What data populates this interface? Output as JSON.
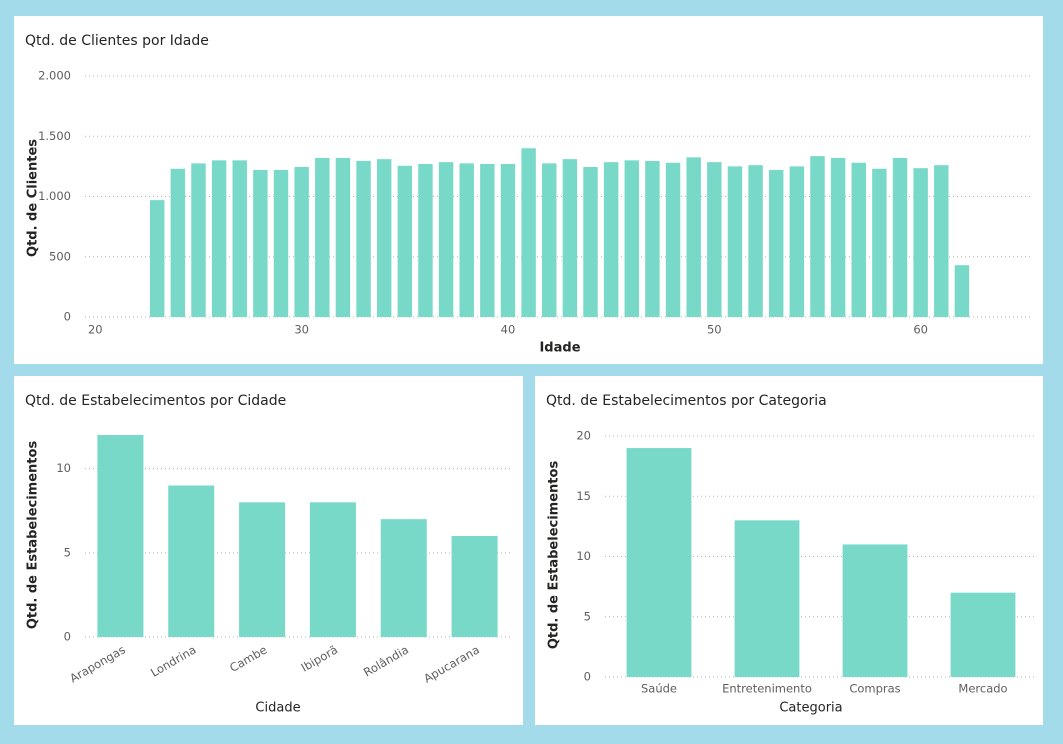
{
  "chart_data": [
    {
      "type": "bar",
      "title": "Qtd. de Clientes por Idade",
      "x_label": "Idade",
      "y_label": "Qtd. de Clientes",
      "x": [
        23,
        24,
        25,
        26,
        27,
        28,
        29,
        30,
        31,
        32,
        33,
        34,
        35,
        36,
        37,
        38,
        39,
        40,
        41,
        42,
        43,
        44,
        45,
        46,
        47,
        48,
        49,
        50,
        51,
        52,
        53,
        54,
        55,
        56,
        57,
        58,
        59,
        60,
        61,
        62
      ],
      "values": [
        970,
        1230,
        1275,
        1300,
        1300,
        1220,
        1220,
        1245,
        1320,
        1320,
        1295,
        1310,
        1255,
        1270,
        1285,
        1275,
        1270,
        1270,
        1400,
        1275,
        1310,
        1245,
        1285,
        1300,
        1295,
        1280,
        1325,
        1285,
        1250,
        1260,
        1220,
        1250,
        1335,
        1320,
        1280,
        1230,
        1320,
        1235,
        1260,
        430
      ],
      "color": "#78d9c9",
      "xlim": [
        19.5,
        65.3
      ],
      "xticks": [
        20,
        30,
        40,
        50,
        60
      ],
      "ylim": [
        0,
        2000
      ],
      "yticks": [
        0,
        500,
        {
          "value": 1000,
          "label": "1.000"
        },
        {
          "value": 1500,
          "label": "1.500"
        },
        {
          "value": 2000,
          "label": "2.000"
        }
      ],
      "grid": true
    },
    {
      "type": "bar",
      "title": "Qtd. de Estabelecimentos por Cidade",
      "x_label": "Cidade",
      "y_label": "Qtd. de Estabelecimentos",
      "categories": [
        "Arapongas",
        "Londrina",
        "Cambe",
        "Ibiporã",
        "Rolândia",
        "Apucarana"
      ],
      "values": [
        12,
        9,
        8,
        8,
        7,
        6
      ],
      "color": "#78d9c9",
      "ylim": [
        0,
        12
      ],
      "yticks": [
        0,
        5,
        10
      ],
      "grid": true
    },
    {
      "type": "bar",
      "title": "Qtd. de Estabelecimentos por Categoria",
      "x_label": "Categoria",
      "y_label": "Qtd. de Estabelecimentos",
      "categories": [
        "Saúde",
        "Entretenimento",
        "Compras",
        "Mercado"
      ],
      "values": [
        19,
        13,
        11,
        7
      ],
      "color": "#78d9c9",
      "ylim": [
        0,
        20
      ],
      "yticks": [
        0,
        5,
        10,
        15,
        20
      ],
      "grid": true
    }
  ]
}
